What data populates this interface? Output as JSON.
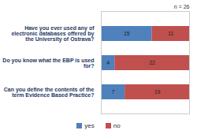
{
  "chart_data": {
    "type": "bar",
    "orientation": "horizontal",
    "stacked": true,
    "data_labels": true,
    "annotation": "n = 26",
    "categories": [
      "Have you ever used any of electronic databases offered by the University of Ostrava?",
      "Do you know what the EBP is used for?",
      "Can you define the contents of the term Evidence Based Practice?"
    ],
    "series": [
      {
        "name": "yes",
        "color": "#4f81bd",
        "values": [
          15,
          4,
          7
        ]
      },
      {
        "name": "no",
        "color": "#c0504d",
        "values": [
          11,
          22,
          19
        ]
      }
    ],
    "xlim": [
      0,
      26
    ],
    "tick_labels": false,
    "grid": false,
    "legend": "bottom"
  }
}
